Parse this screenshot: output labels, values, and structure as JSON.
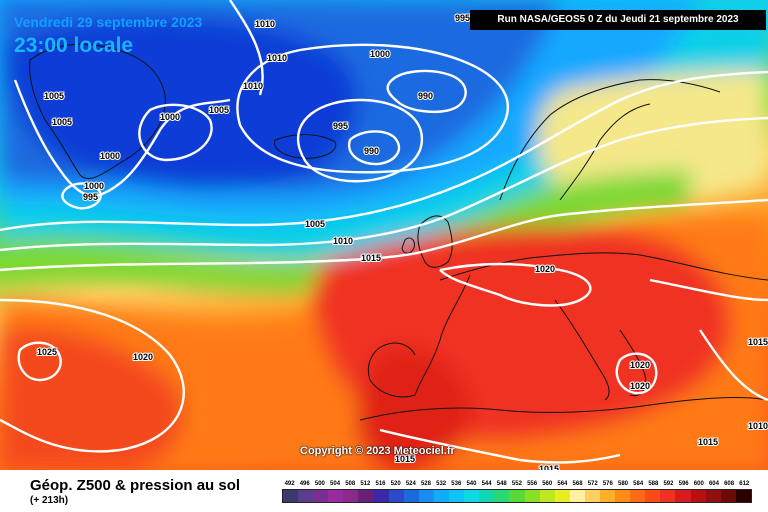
{
  "header": {
    "date": "Vendredi 29 septembre 2023",
    "time": "23:00 locale",
    "run": "Run NASA/GEOS5 0 Z du Jeudi 21 septembre 2023"
  },
  "map": {
    "copyright": "Copyright © 2023 Meteociel.fr",
    "isobar_labels": [
      "1010",
      "1010",
      "1010",
      "1005",
      "1005",
      "1005",
      "1000",
      "1000",
      "1000",
      "1000",
      "995",
      "995",
      "990",
      "990",
      "995",
      "1005",
      "1010",
      "1015",
      "1020",
      "1025",
      "1020",
      "1020",
      "1020",
      "1015",
      "1015",
      "1015",
      "1015",
      "1010"
    ]
  },
  "footer": {
    "title": "Géop. Z500 & pression au sol",
    "subtitle": "(+ 213h)"
  },
  "legend": {
    "values": [
      "492",
      "496",
      "500",
      "504",
      "508",
      "512",
      "516",
      "520",
      "524",
      "528",
      "532",
      "536",
      "540",
      "544",
      "548",
      "552",
      "556",
      "560",
      "564",
      "568",
      "572",
      "576",
      "580",
      "584",
      "588",
      "592",
      "596",
      "600",
      "604",
      "608",
      "612"
    ],
    "colors": [
      "#3a3a6e",
      "#5c3c8c",
      "#7a2f8f",
      "#9a2aa0",
      "#8b2a8c",
      "#6a1f7a",
      "#3a2aa8",
      "#2a4ac8",
      "#1a6ae0",
      "#1a8ef0",
      "#12acff",
      "#0dc4f5",
      "#10d8e0",
      "#10d8b0",
      "#28d870",
      "#5ad838",
      "#8ae028",
      "#bce820",
      "#e8ec20",
      "#fff0a0",
      "#ffd060",
      "#ffb02a",
      "#ff8c14",
      "#ff6a14",
      "#ff4a1a",
      "#f03020",
      "#d81a1a",
      "#b81010",
      "#901010",
      "#6a0a0a",
      "#2a0000"
    ]
  },
  "colors": {
    "dark_blue": "#0b3dd6",
    "blue": "#1a6ae0",
    "light_blue": "#12acff",
    "cyan": "#10d8e0",
    "green": "#5ad838",
    "yellow": "#e8ec20",
    "orange": "#ffb02a",
    "red_orange": "#ff6a14",
    "red": "#f03020"
  }
}
